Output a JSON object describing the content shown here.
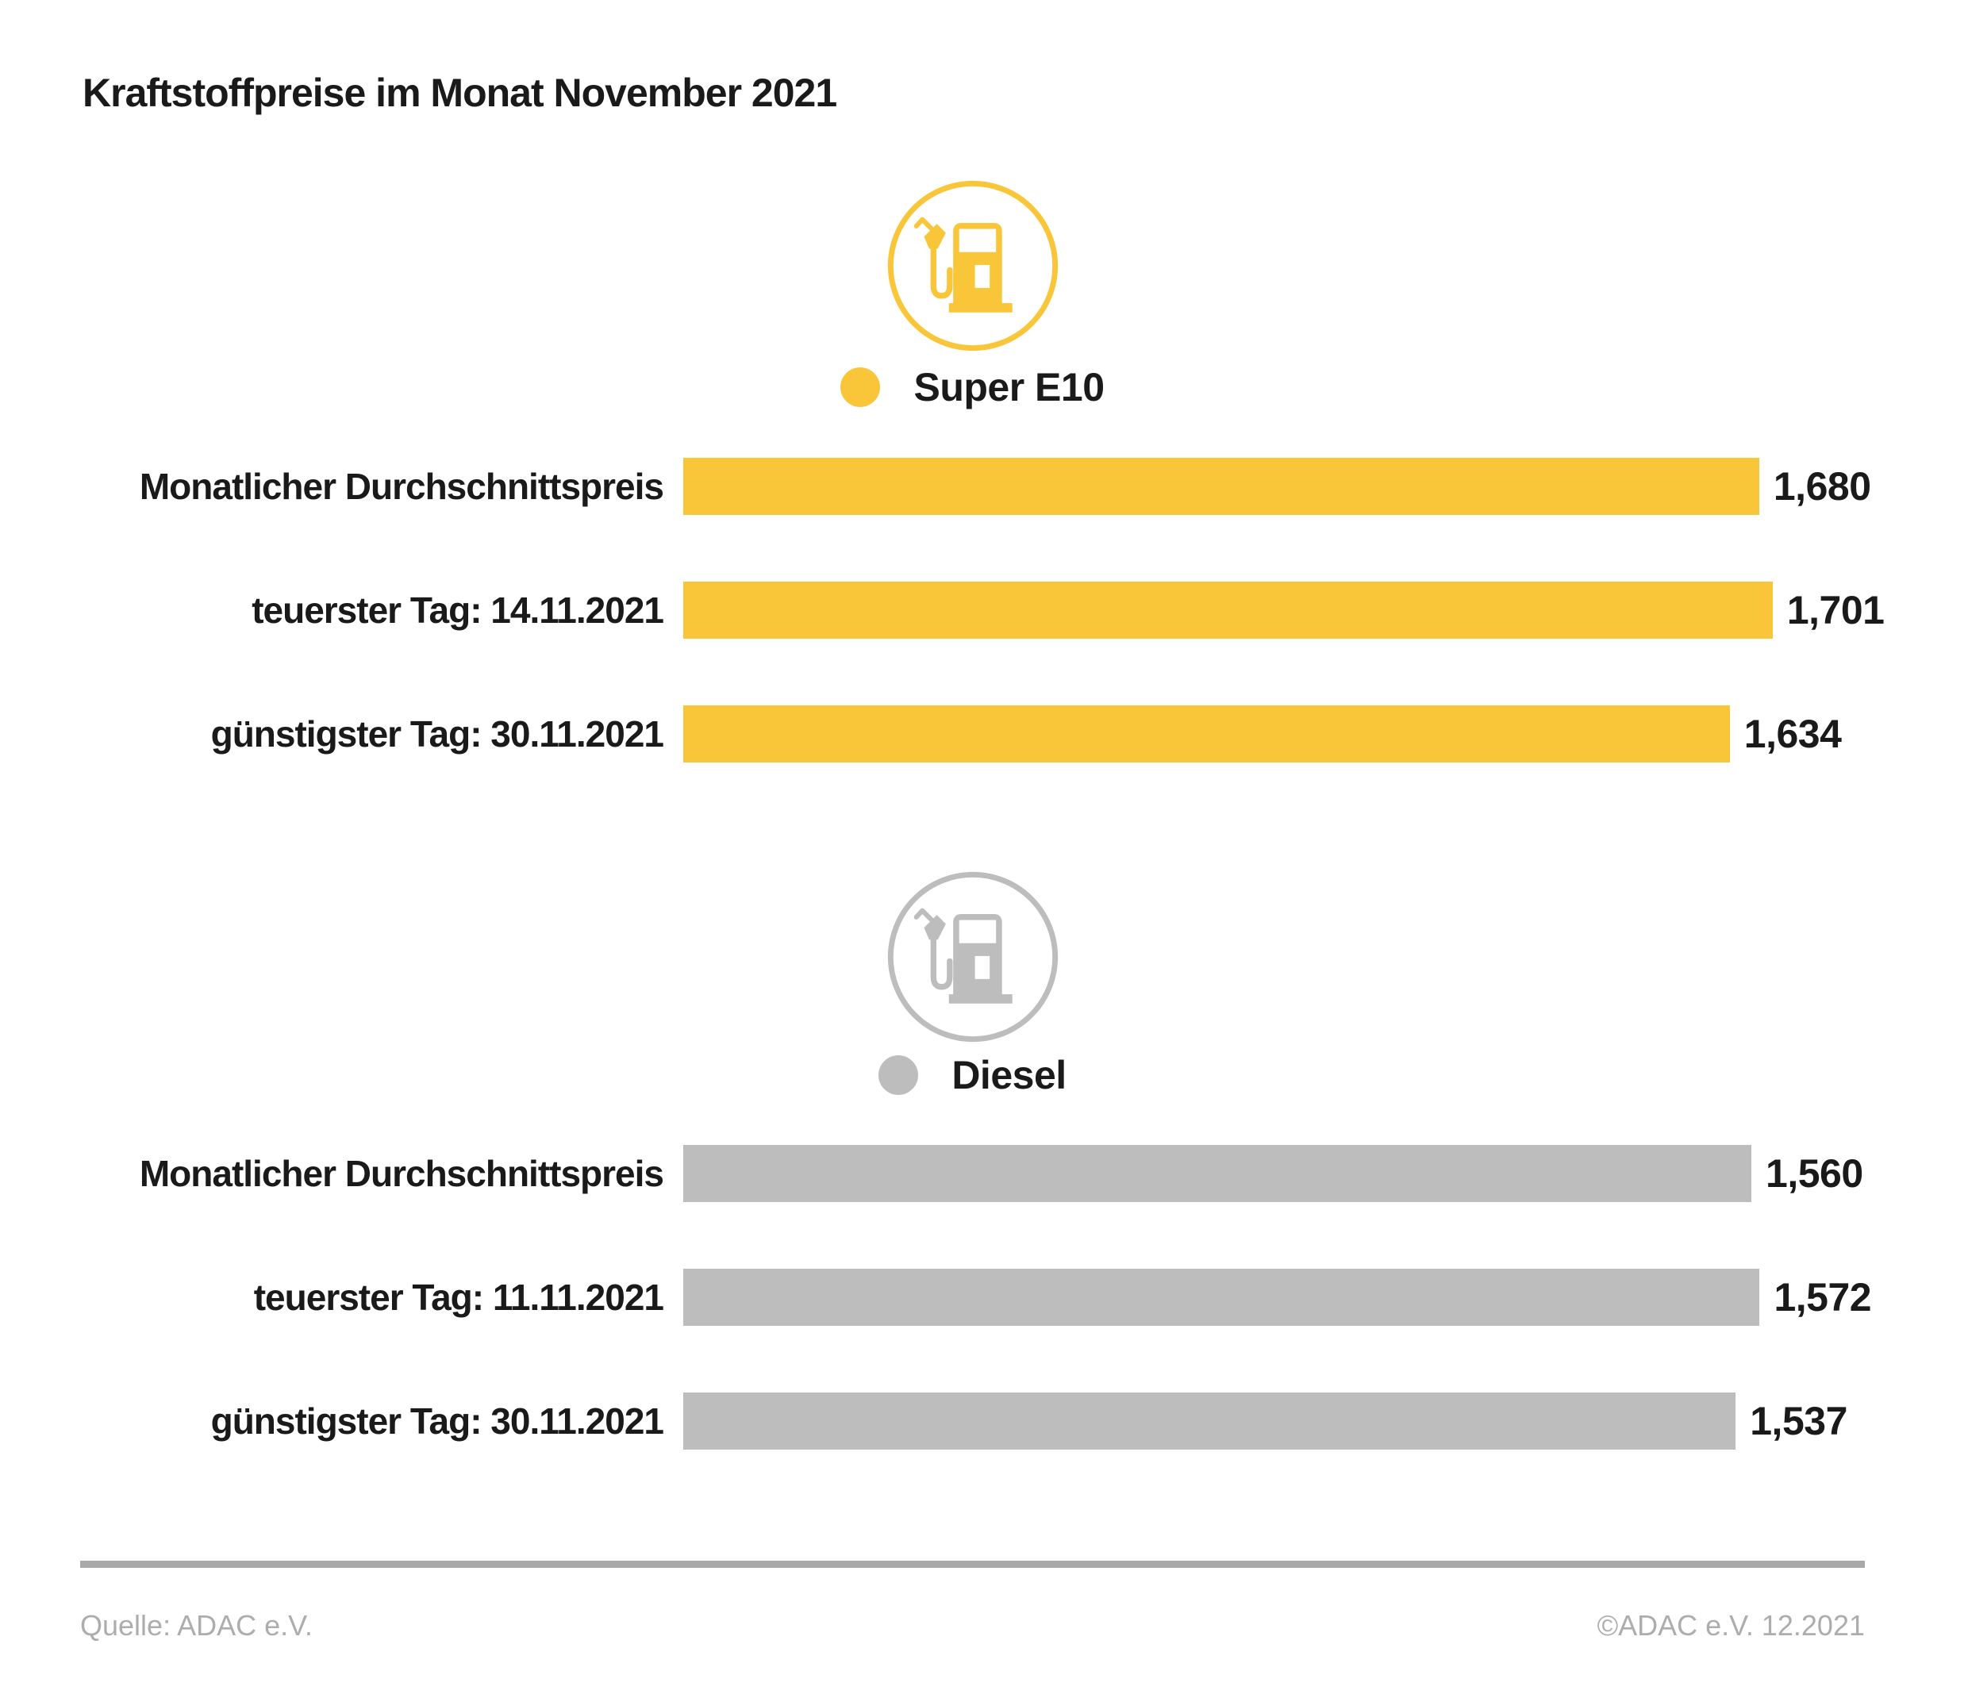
{
  "title": "Kraftstoffpreise im Monat November 2021",
  "colors": {
    "super_e10": "#F9C63A",
    "diesel": "#BDBDBD",
    "text": "#1a1a1a",
    "divider": "#a9a9a9",
    "footer_text": "#adadad"
  },
  "chart_data": [
    {
      "type": "bar",
      "group": "Super E10",
      "icon": "fuel-pump-icon",
      "legend_dot_color": "#F9C63A",
      "color": "#F9C63A",
      "categories": [
        "Monatlicher Durchschnittspreis",
        "teuerster Tag: 14.11.2021",
        "günstigster Tag: 30.11.2021"
      ],
      "values": [
        1.68,
        1.701,
        1.634
      ],
      "value_labels": [
        "1,680",
        "1,701",
        "1,634"
      ],
      "orientation": "horizontal",
      "axis": "none",
      "value_label_position": "right-of-bar"
    },
    {
      "type": "bar",
      "group": "Diesel",
      "icon": "fuel-pump-icon",
      "legend_dot_color": "#BDBDBD",
      "color": "#BDBDBD",
      "categories": [
        "Monatlicher Durchschnittspreis",
        "teuerster Tag: 11.11.2021",
        "günstigster Tag: 30.11.2021"
      ],
      "values": [
        1.56,
        1.572,
        1.537
      ],
      "value_labels": [
        "1,560",
        "1,572",
        "1,537"
      ],
      "orientation": "horizontal",
      "axis": "none",
      "value_label_position": "right-of-bar"
    }
  ],
  "footer": {
    "source": "Quelle: ADAC e.V.",
    "copyright": "©ADAC e.V. 12.2021"
  }
}
